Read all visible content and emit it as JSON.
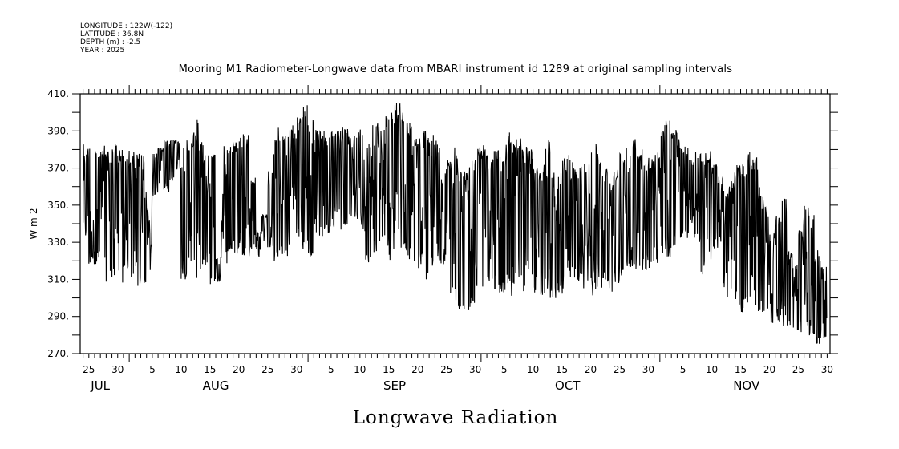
{
  "header": {
    "meta_lines": [
      "LONGITUDE : 122W(-122)",
      "LATITUDE : 36.8N",
      "DEPTH (m) : -2.5",
      "YEAR : 2025"
    ]
  },
  "chart_data": {
    "type": "line",
    "title": "Mooring M1 Radiometer-Longwave data from MBARI instrument id 1289 at original sampling intervals",
    "xlabel": "Longwave Radiation",
    "ylabel": "W m-2",
    "ylim": [
      270,
      410
    ],
    "y_ticks": [
      270,
      290,
      310,
      330,
      350,
      370,
      390,
      410
    ],
    "y_tick_labels": [
      "270.",
      "290.",
      "310.",
      "330.",
      "350.",
      "370.",
      "390.",
      "410."
    ],
    "y_minor_step": 10,
    "x_range": {
      "start": "2025-07-23T12:00",
      "end": "2025-11-30T12:00"
    },
    "x_day_labels": [
      {
        "date": "2025-07-25",
        "label": "25"
      },
      {
        "date": "2025-07-30",
        "label": "30"
      },
      {
        "date": "2025-08-05",
        "label": "5"
      },
      {
        "date": "2025-08-10",
        "label": "10"
      },
      {
        "date": "2025-08-15",
        "label": "15"
      },
      {
        "date": "2025-08-20",
        "label": "20"
      },
      {
        "date": "2025-08-25",
        "label": "25"
      },
      {
        "date": "2025-08-30",
        "label": "30"
      },
      {
        "date": "2025-09-05",
        "label": "5"
      },
      {
        "date": "2025-09-10",
        "label": "10"
      },
      {
        "date": "2025-09-15",
        "label": "15"
      },
      {
        "date": "2025-09-20",
        "label": "20"
      },
      {
        "date": "2025-09-25",
        "label": "25"
      },
      {
        "date": "2025-09-30",
        "label": "30"
      },
      {
        "date": "2025-10-05",
        "label": "5"
      },
      {
        "date": "2025-10-10",
        "label": "10"
      },
      {
        "date": "2025-10-15",
        "label": "15"
      },
      {
        "date": "2025-10-20",
        "label": "20"
      },
      {
        "date": "2025-10-25",
        "label": "25"
      },
      {
        "date": "2025-10-30",
        "label": "30"
      },
      {
        "date": "2025-11-05",
        "label": "5"
      },
      {
        "date": "2025-11-10",
        "label": "10"
      },
      {
        "date": "2025-11-15",
        "label": "15"
      },
      {
        "date": "2025-11-20",
        "label": "20"
      },
      {
        "date": "2025-11-25",
        "label": "25"
      },
      {
        "date": "2025-11-30",
        "label": "30"
      }
    ],
    "month_labels": [
      {
        "date": "2025-07-27",
        "label": "JUL"
      },
      {
        "date": "2025-08-16",
        "label": "AUG"
      },
      {
        "date": "2025-09-16",
        "label": "SEP"
      },
      {
        "date": "2025-10-16",
        "label": "OCT"
      },
      {
        "date": "2025-11-16",
        "label": "NOV"
      }
    ],
    "month_boundaries": [
      "2025-08-01",
      "2025-09-01",
      "2025-10-01",
      "2025-11-01"
    ],
    "grid": false,
    "series": [
      {
        "name": "Longwave radiation",
        "color": "#000000",
        "sampling": "original sampling intervals (approx. hourly)",
        "start_date": "2025-07-24",
        "daily_envelope_note": "per-day [low, high] in W m-2 estimated from plot",
        "daily_low": [
          322,
          315,
          318,
          315,
          305,
          308,
          306,
          314,
          305,
          302,
          304,
          310,
          355,
          360,
          357,
          362,
          365,
          310,
          318,
          309,
          312,
          317,
          306,
          308,
          318,
          325,
          320,
          323,
          321,
          326,
          322,
          330,
          326,
          318,
          320,
          322,
          325,
          330,
          324,
          320,
          318,
          333,
          335,
          338,
          336,
          337,
          340,
          342,
          336,
          318,
          323,
          330,
          326,
          320,
          334,
          326,
          320,
          312,
          315,
          310,
          314,
          320,
          318,
          300,
          296,
          290,
          293,
          295,
          296,
          298,
          305,
          303,
          300,
          302,
          301,
          305,
          303,
          304,
          300,
          298,
          302,
          297,
          300,
          302,
          309,
          308,
          305,
          301,
          300,
          304,
          308,
          302,
          306,
          311,
          313,
          314,
          317,
          314,
          315,
          318,
          320,
          322,
          328,
          330,
          332,
          340,
          330,
          312,
          318,
          324,
          326,
          300,
          298,
          296,
          292,
          295,
          296,
          290,
          288,
          285,
          286,
          283,
          285,
          282,
          280,
          279,
          277,
          274,
          278
        ],
        "daily_high": [
          383,
          383,
          380,
          384,
          379,
          383,
          381,
          378,
          380,
          378,
          378,
          348,
          378,
          381,
          385,
          386,
          385,
          384,
          386,
          396,
          385,
          379,
          382,
          322,
          382,
          383,
          386,
          389,
          388,
          365,
          336,
          345,
          370,
          392,
          390,
          395,
          393,
          398,
          405,
          400,
          393,
          390,
          388,
          392,
          390,
          392,
          387,
          390,
          392,
          389,
          395,
          396,
          398,
          402,
          405,
          402,
          395,
          386,
          388,
          390,
          389,
          385,
          368,
          376,
          382,
          370,
          372,
          375,
          383,
          385,
          378,
          380,
          382,
          390,
          388,
          386,
          382,
          380,
          375,
          372,
          385,
          368,
          368,
          376,
          379,
          372,
          374,
          380,
          386,
          380,
          372,
          365,
          370,
          380,
          385,
          388,
          382,
          375,
          377,
          380,
          394,
          396,
          392,
          386,
          382,
          375,
          380,
          379,
          380,
          372,
          366,
          360,
          364,
          373,
          375,
          380,
          378,
          360,
          350,
          335,
          345,
          355,
          325,
          318,
          340,
          350,
          345,
          326,
          318
        ]
      }
    ]
  }
}
